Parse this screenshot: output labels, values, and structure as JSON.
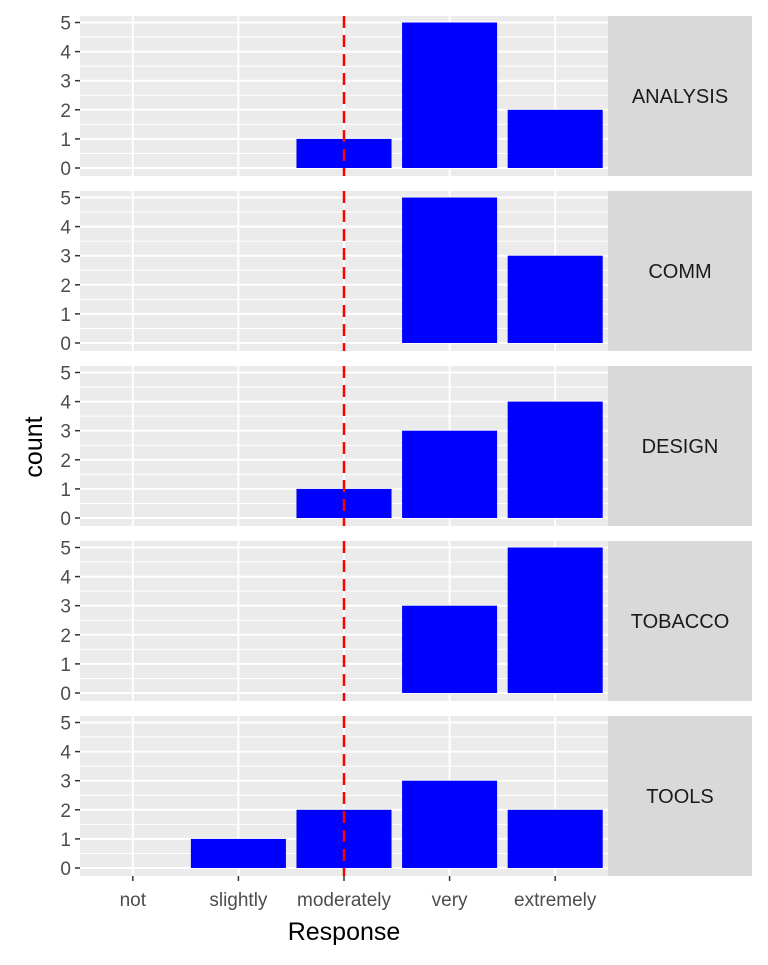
{
  "chart_data": {
    "type": "bar",
    "facet_layout": "vertical stack, strip labels on right",
    "categories": [
      "not",
      "slightly",
      "moderately",
      "very",
      "extremely"
    ],
    "xlabel": "Response",
    "ylabel": "count",
    "ylim": [
      0,
      5.2
    ],
    "yticks": [
      0,
      1,
      2,
      3,
      4,
      5
    ],
    "grid": true,
    "reference_line": {
      "category": "moderately",
      "color": "#ff0000",
      "style": "dashed"
    },
    "colors": {
      "bar": "#0000ff",
      "panel_bg": "#ebebeb",
      "strip_bg": "#d9d9d9",
      "grid": "#ffffff"
    },
    "panels": [
      {
        "label": "ANALYSIS",
        "values": [
          0,
          0,
          1,
          5,
          2
        ]
      },
      {
        "label": "COMM",
        "values": [
          0,
          0,
          0,
          5,
          3
        ]
      },
      {
        "label": "DESIGN",
        "values": [
          0,
          0,
          1,
          3,
          4
        ]
      },
      {
        "label": "TOBACCO",
        "values": [
          0,
          0,
          0,
          3,
          5
        ]
      },
      {
        "label": "TOOLS",
        "values": [
          0,
          1,
          2,
          3,
          2
        ]
      }
    ]
  }
}
